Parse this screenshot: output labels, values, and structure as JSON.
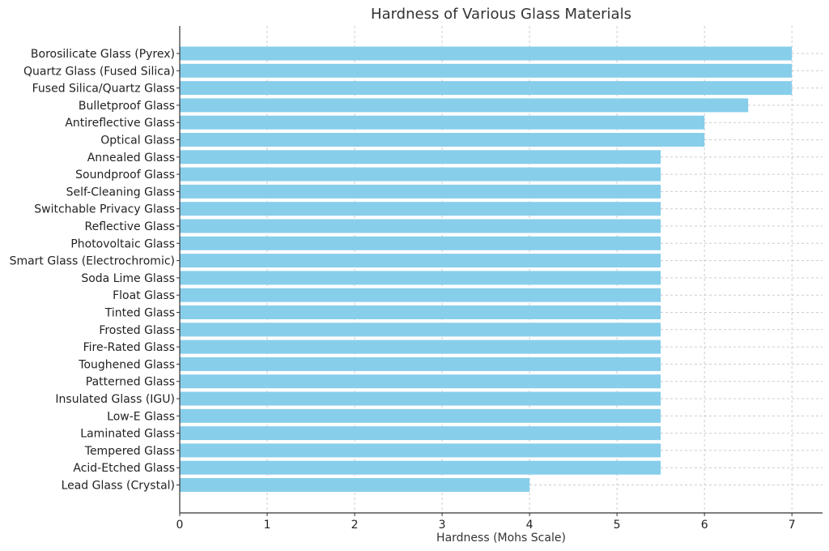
{
  "chart_data": {
    "type": "bar",
    "orientation": "horizontal",
    "title": "Hardness of Various Glass Materials",
    "xlabel": "Hardness (Mohs Scale)",
    "ylabel": "",
    "xlim": [
      0,
      7.35
    ],
    "xticks": [
      0,
      1,
      2,
      3,
      4,
      5,
      6,
      7
    ],
    "grid": true,
    "bar_color": "#87CEEB",
    "categories": [
      "Borosilicate Glass (Pyrex)",
      "Quartz Glass (Fused Silica)",
      "Fused Silica/Quartz Glass",
      "Bulletproof Glass",
      "Antireflective Glass",
      "Optical Glass",
      "Annealed Glass",
      "Soundproof Glass",
      "Self-Cleaning Glass",
      "Switchable Privacy Glass",
      "Reflective Glass",
      "Photovoltaic Glass",
      "Smart Glass (Electrochromic)",
      "Soda Lime Glass",
      "Float Glass",
      "Tinted Glass",
      "Frosted Glass",
      "Fire-Rated Glass",
      "Toughened Glass",
      "Patterned Glass",
      "Insulated Glass (IGU)",
      "Low-E Glass",
      "Laminated Glass",
      "Tempered Glass",
      "Acid-Etched Glass",
      "Lead Glass (Crystal)"
    ],
    "values": [
      7,
      7,
      7,
      6.5,
      6,
      6,
      5.5,
      5.5,
      5.5,
      5.5,
      5.5,
      5.5,
      5.5,
      5.5,
      5.5,
      5.5,
      5.5,
      5.5,
      5.5,
      5.5,
      5.5,
      5.5,
      5.5,
      5.5,
      5.5,
      4
    ]
  }
}
